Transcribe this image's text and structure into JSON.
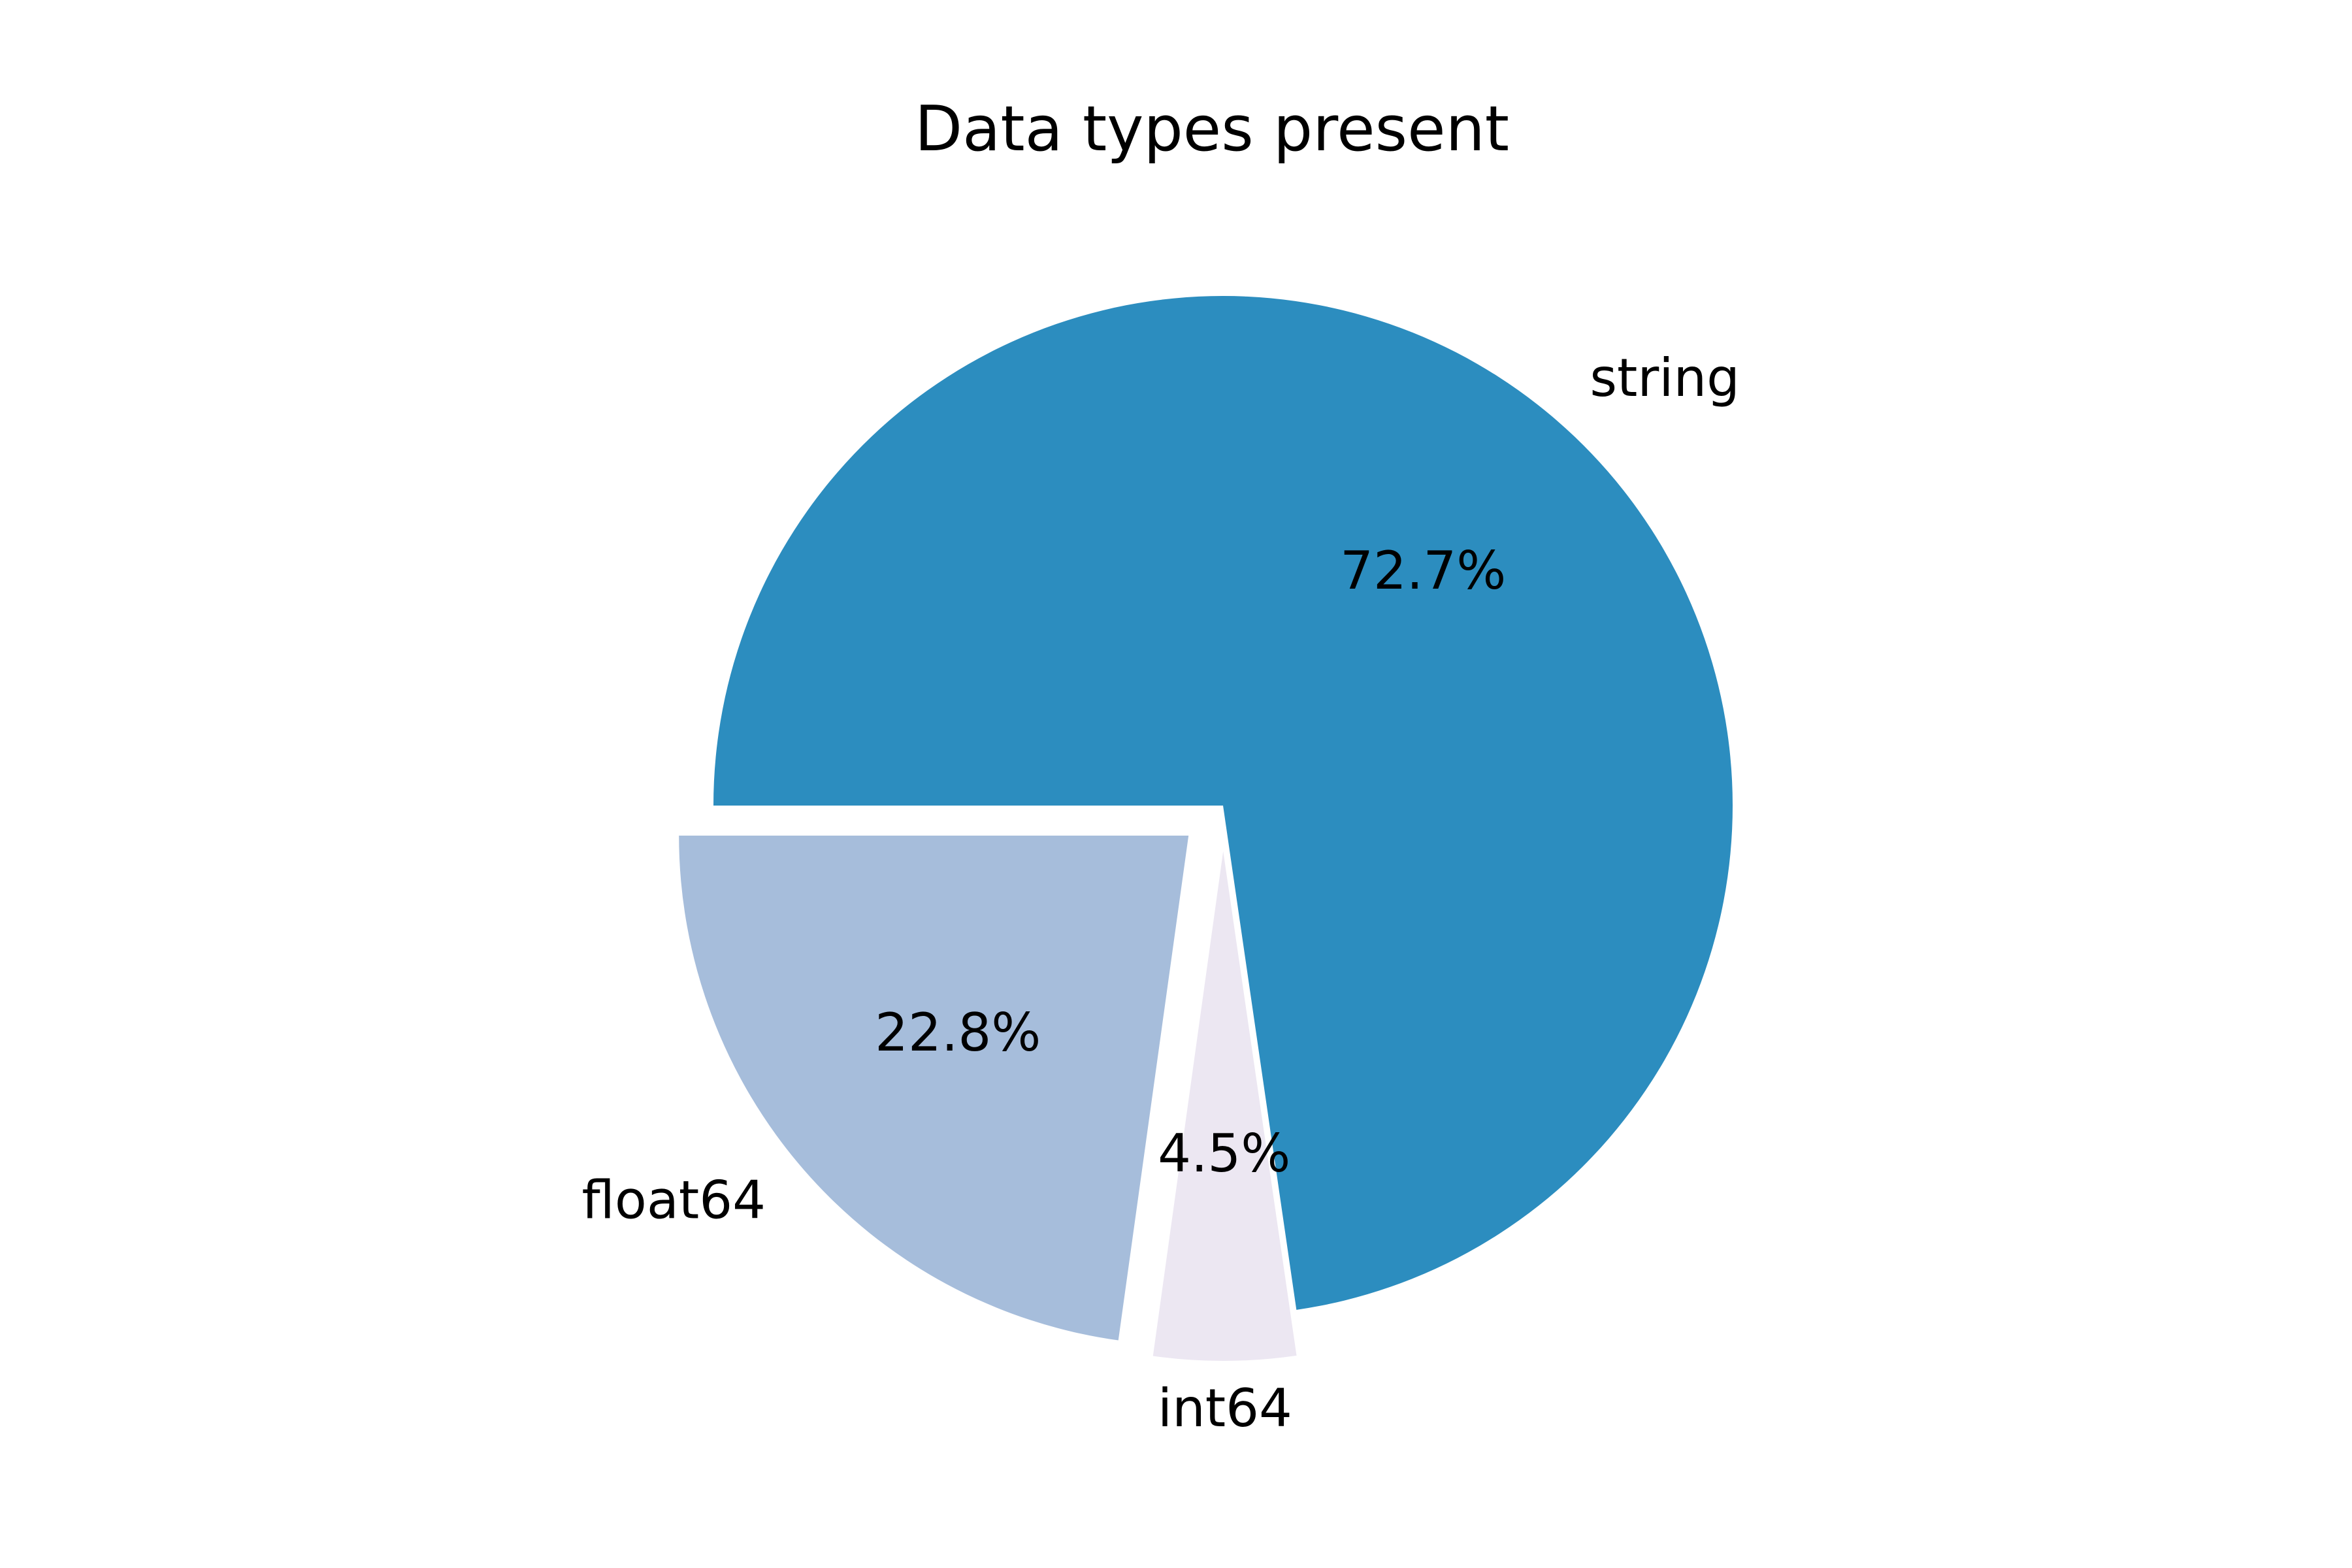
{
  "chart_data": {
    "type": "pie",
    "title": "Data types present",
    "start_angle_deg": 180,
    "direction": "clockwise",
    "slices": [
      {
        "label": "string",
        "value": 72.7,
        "pct_label": "72.7%",
        "color": "#2c8dbf",
        "exploded": false
      },
      {
        "label": "int64",
        "value": 4.5,
        "pct_label": "4.5%",
        "color": "#ece7f2",
        "exploded": true
      },
      {
        "label": "float64",
        "value": 22.8,
        "pct_label": "22.8%",
        "color": "#a6bddb",
        "exploded": true
      }
    ],
    "legend": "none",
    "grid": false
  }
}
